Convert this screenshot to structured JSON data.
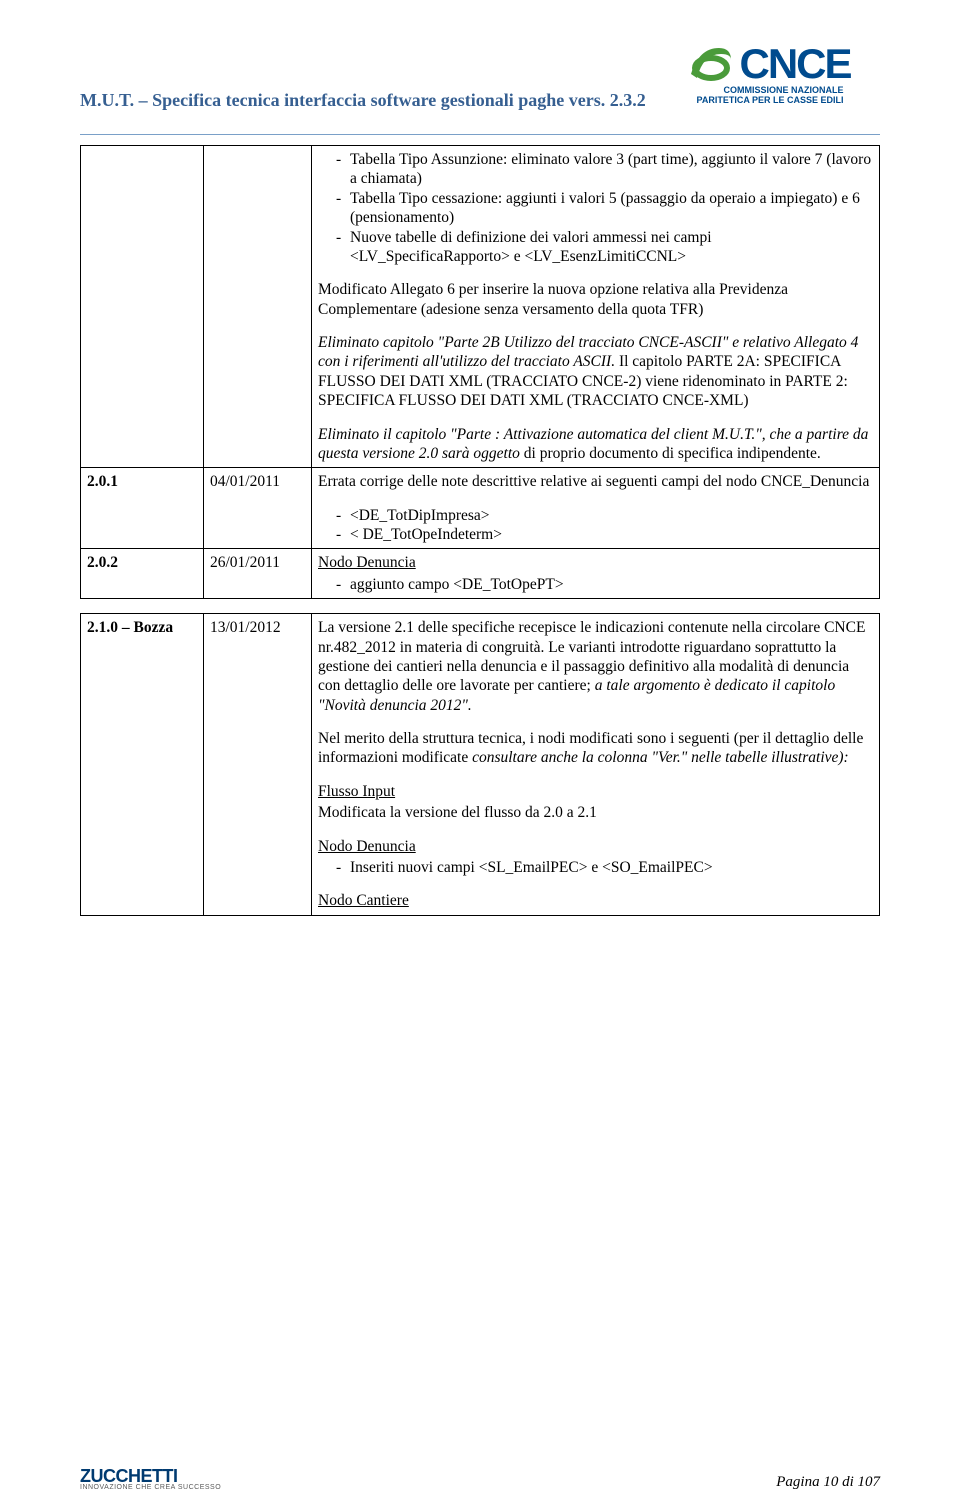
{
  "header": {
    "title": "M.U.T. – Specifica tecnica interfaccia software gestionali paghe vers. 2.3.2",
    "logo_text": "CNCE",
    "logo_sub1": "COMMISSIONE NAZIONALE",
    "logo_sub2": "PARITETICA PER LE CASSE EDILI"
  },
  "rows": [
    {
      "ver": "",
      "date": "",
      "blocks": [
        {
          "type": "ul",
          "items": [
            "Tabella Tipo Assunzione: eliminato valore 3 (part time), aggiunto il valore 7 (lavoro a chiamata)",
            "Tabella Tipo cessazione: aggiunti i valori 5 (passaggio da operaio a impiegato) e 6 (pensionamento)",
            "Nuove tabelle di definizione dei valori ammessi nei campi <LV_SpecificaRapporto> e <LV_EsenzLimitiCCNL>"
          ]
        },
        {
          "type": "p",
          "text": "Modificato Allegato 6 per inserire la nuova opzione relativa alla Previdenza Complementare (adesione senza versamento della quota TFR)"
        },
        {
          "type": "html",
          "html": "<i>Eliminato capitolo \"Parte 2B Utilizzo del tracciato CNCE-ASCII\" e relativo Allegato 4 con i riferimenti all'utilizzo del tracciato ASCII.</i> Il capitolo PARTE 2A: SPECIFICA FLUSSO DEI DATI XML (TRACCIATO CNCE-2) viene ridenominato in PARTE 2: SPECIFICA FLUSSO DEI DATI XML (TRACCIATO CNCE-XML)"
        },
        {
          "type": "html",
          "html": "<i>Eliminato il capitolo \"Parte : Attivazione automatica del client M.U.T.\", che a partire da questa versione 2.0 sarà oggetto</i> di proprio documento di specifica indipendente."
        }
      ]
    },
    {
      "ver": "2.0.1",
      "date": "04/01/2011",
      "blocks": [
        {
          "type": "p",
          "text": "Errata corrige delle note descrittive relative ai seguenti campi del nodo CNCE_Denuncia"
        },
        {
          "type": "ul",
          "items": [
            "<DE_TotDipImpresa>",
            "< DE_TotOpeIndeterm>"
          ]
        }
      ]
    },
    {
      "ver": "2.0.2",
      "date": "26/01/2011",
      "blocks": [
        {
          "type": "u",
          "text": "Nodo Denuncia"
        },
        {
          "type": "ul",
          "items": [
            "aggiunto campo <DE_TotOpePT>"
          ]
        }
      ]
    },
    {
      "ver": "2.1.0 – Bozza",
      "date": "13/01/2012",
      "blocks": [
        {
          "type": "html",
          "html": "La versione 2.1 delle specifiche recepisce le indicazioni contenute nella circolare CNCE nr.482_2012 in materia di congruità. Le varianti introdotte riguardano soprattutto la gestione dei cantieri nella denuncia e il passaggio definitivo alla modalità di denuncia con dettaglio delle ore lavorate per cantiere; <i>a tale argomento è dedicato il capitolo \"Novità denuncia 2012\".</i>"
        },
        {
          "type": "html",
          "html": "Nel merito della struttura tecnica, i nodi modificati sono i seguenti (per il dettaglio delle informazioni modificate <i>consultare anche la colonna \"Ver.\" nelle tabelle illustrative):</i>"
        },
        {
          "type": "u",
          "text": "Flusso Input"
        },
        {
          "type": "p",
          "text": "Modificata la versione del flusso da 2.0 a 2.1"
        },
        {
          "type": "u",
          "text": "Nodo Denuncia"
        },
        {
          "type": "ul",
          "items": [
            "Inseriti nuovi campi <SL_EmailPEC> e <SO_EmailPEC>"
          ]
        },
        {
          "type": "u",
          "text": "Nodo Cantiere"
        }
      ]
    }
  ],
  "footer": {
    "logo": "ZUCCHETTI",
    "logo_sub": "INNOVAZIONE CHE CREA SUCCESSO",
    "page": "Pagina 10 di 107"
  }
}
